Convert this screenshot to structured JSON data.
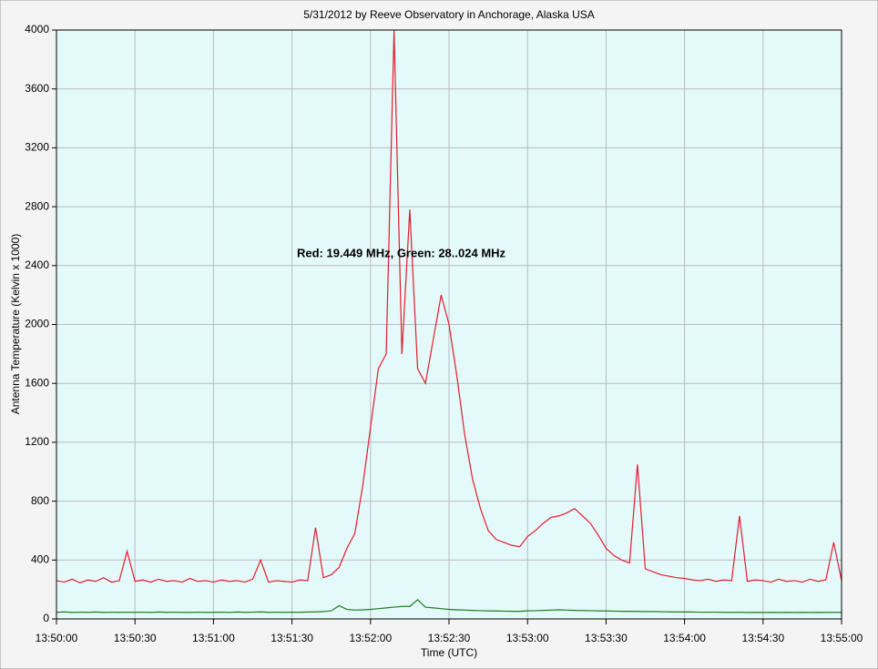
{
  "chart_data": {
    "type": "line",
    "title": "5/31/2012  by  Reeve Observatory  in  Anchorage, Alaska  USA",
    "x_label": "Time (UTC)",
    "y_label": "Antenna Temperature (Kelvin x 1000)",
    "annotation": "Red: 19.449 MHz, Green: 28..024 MHz",
    "x": [
      "13:50:00",
      "13:50:03",
      "13:50:06",
      "13:50:09",
      "13:50:12",
      "13:50:15",
      "13:50:18",
      "13:50:21",
      "13:50:24",
      "13:50:27",
      "13:50:30",
      "13:50:33",
      "13:50:36",
      "13:50:39",
      "13:50:42",
      "13:50:45",
      "13:50:48",
      "13:50:51",
      "13:50:54",
      "13:50:57",
      "13:51:00",
      "13:51:03",
      "13:51:06",
      "13:51:09",
      "13:51:12",
      "13:51:15",
      "13:51:18",
      "13:51:21",
      "13:51:24",
      "13:51:27",
      "13:51:30",
      "13:51:33",
      "13:51:36",
      "13:51:39",
      "13:51:42",
      "13:51:45",
      "13:51:48",
      "13:51:51",
      "13:51:54",
      "13:51:57",
      "13:52:00",
      "13:52:03",
      "13:52:06",
      "13:52:09",
      "13:52:12",
      "13:52:15",
      "13:52:18",
      "13:52:21",
      "13:52:24",
      "13:52:27",
      "13:52:30",
      "13:52:33",
      "13:52:36",
      "13:52:39",
      "13:52:42",
      "13:52:45",
      "13:52:48",
      "13:52:51",
      "13:52:54",
      "13:52:57",
      "13:53:00",
      "13:53:03",
      "13:53:06",
      "13:53:09",
      "13:53:12",
      "13:53:15",
      "13:53:18",
      "13:53:21",
      "13:53:24",
      "13:53:27",
      "13:53:30",
      "13:53:33",
      "13:53:36",
      "13:53:39",
      "13:53:42",
      "13:53:45",
      "13:53:48",
      "13:53:51",
      "13:53:54",
      "13:53:57",
      "13:54:00",
      "13:54:03",
      "13:54:06",
      "13:54:09",
      "13:54:12",
      "13:54:15",
      "13:54:18",
      "13:54:21",
      "13:54:24",
      "13:54:27",
      "13:54:30",
      "13:54:33",
      "13:54:36",
      "13:54:39",
      "13:54:42",
      "13:54:45",
      "13:54:48",
      "13:54:51",
      "13:54:54",
      "13:54:57",
      "13:55:00"
    ],
    "series": [
      {
        "color": "#e41a2c",
        "values": [
          260,
          250,
          270,
          245,
          265,
          255,
          280,
          250,
          260,
          460,
          255,
          265,
          250,
          270,
          255,
          260,
          250,
          275,
          255,
          260,
          250,
          265,
          255,
          260,
          250,
          270,
          400,
          250,
          260,
          255,
          250,
          265,
          260,
          620,
          280,
          300,
          350,
          480,
          580,
          900,
          1300,
          1700,
          1800,
          4000,
          1800,
          2780,
          1700,
          1600,
          1900,
          2200,
          2000,
          1650,
          1250,
          950,
          750,
          600,
          540,
          520,
          500,
          490,
          560,
          600,
          650,
          690,
          700,
          720,
          750,
          700,
          650,
          570,
          480,
          430,
          400,
          380,
          1050,
          340,
          320,
          300,
          290,
          280,
          275,
          265,
          260,
          270,
          255,
          265,
          260,
          700,
          255,
          265,
          260,
          250,
          270,
          255,
          260,
          250,
          270,
          255,
          265,
          520,
          260
        ]
      },
      {
        "color": "#1e7d1e",
        "values": [
          45,
          48,
          44,
          46,
          45,
          47,
          44,
          46,
          45,
          46,
          45,
          46,
          44,
          47,
          45,
          46,
          45,
          44,
          46,
          45,
          45,
          46,
          44,
          47,
          45,
          46,
          48,
          45,
          46,
          45,
          46,
          45,
          47,
          48,
          50,
          55,
          90,
          65,
          60,
          62,
          65,
          70,
          75,
          80,
          85,
          85,
          130,
          80,
          75,
          70,
          65,
          62,
          60,
          58,
          56,
          55,
          54,
          53,
          52,
          52,
          55,
          56,
          58,
          60,
          62,
          60,
          58,
          57,
          56,
          55,
          54,
          53,
          52,
          52,
          51,
          50,
          50,
          49,
          48,
          48,
          47,
          47,
          46,
          46,
          46,
          45,
          45,
          45,
          44,
          45,
          44,
          45,
          44,
          45,
          44,
          45,
          44,
          45,
          44,
          45,
          45
        ]
      }
    ],
    "xlim": [
      "13:50:00",
      "13:55:00"
    ],
    "xticks": [
      "13:50:00",
      "13:50:30",
      "13:51:00",
      "13:51:30",
      "13:52:00",
      "13:52:30",
      "13:53:00",
      "13:53:30",
      "13:54:00",
      "13:54:30",
      "13:55:00"
    ],
    "ylim": [
      0,
      4000
    ],
    "yticks": [
      0,
      400,
      800,
      1200,
      1600,
      2000,
      2400,
      2800,
      3200,
      3600,
      4000
    ],
    "grid": true
  }
}
